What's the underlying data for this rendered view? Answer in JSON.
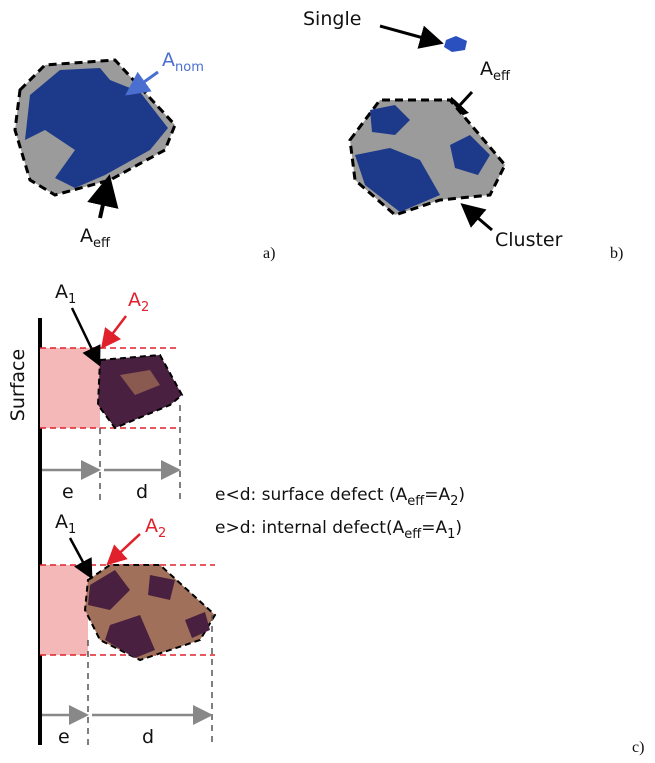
{
  "panel_a": {
    "a_nom": {
      "base": "A",
      "sub": "nom"
    },
    "a_eff": {
      "base": "A",
      "sub": "eff"
    },
    "label": "a)"
  },
  "panel_b": {
    "single": "Single",
    "a_eff": {
      "base": "A",
      "sub": "eff"
    },
    "cluster": "Cluster",
    "label": "b)"
  },
  "panel_c": {
    "surface": "Surface",
    "top": {
      "a1": {
        "base": "A",
        "sub": "1"
      },
      "a2": {
        "base": "A",
        "sub": "2"
      },
      "e": "e",
      "d": "d"
    },
    "rules": [
      [
        "e<d: surface defect (A",
        "eff",
        "=A",
        "2",
        ")"
      ],
      [
        "e>d: internal defect(A",
        "eff",
        "=A",
        "1",
        ")"
      ]
    ],
    "bottom": {
      "a1": {
        "base": "A",
        "sub": "1"
      },
      "a2": {
        "base": "A",
        "sub": "2"
      },
      "e": "e",
      "d": "d"
    },
    "label": "c)"
  }
}
